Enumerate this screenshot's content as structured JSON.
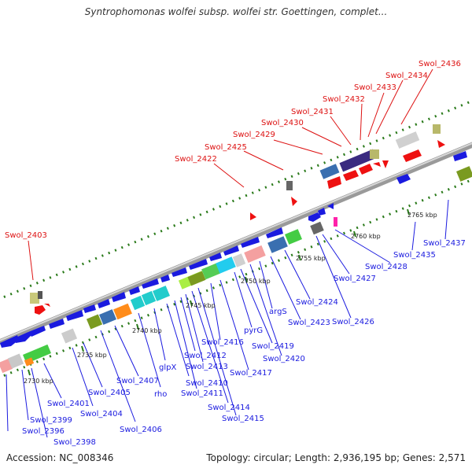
{
  "header": {
    "title": "Syntrophomonas wolfei subsp. wolfei str. Goettingen, complet..."
  },
  "footer": {
    "accession": "Accession: NC_008346",
    "summary": "Topology: circular; Length: 2,936,195 bp; Genes: 2,571"
  },
  "colors": {
    "top_label": "#dd1111",
    "bottom_label": "#1a1adf",
    "backbone": "#7a7a7a",
    "dot_track": "#2a7a1a"
  },
  "ticks": [
    "2730 kbp",
    "2735 kbp",
    "2740 kbp",
    "2745 kbp",
    "2750 kbp",
    "2755 kbp",
    "2760 kbp",
    "2765 kbp"
  ],
  "top_labels": [
    "Swol_2403",
    "Swol_2422",
    "Swol_2425",
    "Swol_2429",
    "Swol_2430",
    "Swol_2431",
    "Swol_2432",
    "Swol_2433",
    "Swol_2434",
    "Swol_2436"
  ],
  "bottom_labels": [
    "Swol_2396",
    "Swol_2398",
    "Swol_2399",
    "Swol_2401",
    "Swol_2404",
    "Swol_2405",
    "Swol_2406",
    "Swol_2407",
    "rho",
    "glpX",
    "Swol_2410",
    "Swol_2411",
    "Swol_2412",
    "Swol_2413",
    "Swol_2414",
    "Swol_2415",
    "Swol_2416",
    "Swol_2417",
    "pyrG",
    "Swol_2419",
    "Swol_2420",
    "argS",
    "Swol_2423",
    "Swol_2424",
    "Swol_2426",
    "Swol_2427",
    "Swol_2428",
    "Swol_2435",
    "Swol_2437"
  ]
}
